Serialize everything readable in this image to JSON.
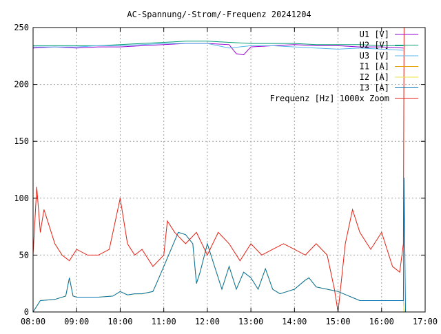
{
  "chart_data": {
    "type": "line",
    "title": "AC-Spannung/-Strom/-Frequenz 20241204",
    "xlabel": "",
    "ylabel": "",
    "x_ticks": [
      "08:00",
      "09:00",
      "10:00",
      "11:00",
      "12:00",
      "13:00",
      "14:00",
      "15:00",
      "16:00",
      "17:00"
    ],
    "xlim": [
      "08:00",
      "17:00"
    ],
    "ylim": [
      0,
      250
    ],
    "y_ticks": [
      0,
      50,
      100,
      150,
      200,
      250
    ],
    "grid": true,
    "legend_position": "top-right",
    "series": [
      {
        "name": "U1 [V]",
        "color": "#9400d3",
        "x": [
          "08:00",
          "08:30",
          "09:00",
          "09:30",
          "10:00",
          "10:30",
          "11:00",
          "11:30",
          "12:00",
          "12:30",
          "12:40",
          "12:50",
          "13:00",
          "13:30",
          "14:00",
          "14:30",
          "15:00",
          "15:30",
          "16:00",
          "16:30"
        ],
        "y": [
          232,
          233,
          232,
          233,
          233,
          234,
          235,
          236,
          236,
          235,
          227,
          226,
          233,
          234,
          235,
          234,
          234,
          233,
          233,
          232
        ]
      },
      {
        "name": "U2 [V]",
        "color": "#009e73",
        "x": [
          "08:00",
          "08:30",
          "09:00",
          "09:30",
          "10:00",
          "10:30",
          "11:00",
          "11:30",
          "12:00",
          "12:30",
          "13:00",
          "13:30",
          "14:00",
          "14:30",
          "15:00",
          "15:30",
          "16:00",
          "16:30"
        ],
        "y": [
          234,
          234,
          234,
          234,
          235,
          236,
          237,
          238,
          238,
          237,
          236,
          236,
          236,
          235,
          235,
          235,
          234,
          234
        ]
      },
      {
        "name": "U3 [V]",
        "color": "#56b4e9",
        "x": [
          "08:00",
          "08:30",
          "09:00",
          "09:30",
          "10:00",
          "10:30",
          "11:00",
          "11:30",
          "12:00",
          "12:30",
          "13:00",
          "13:30",
          "14:00",
          "14:30",
          "15:00",
          "15:30",
          "16:00",
          "16:30"
        ],
        "y": [
          233,
          233,
          233,
          234,
          234,
          235,
          236,
          236,
          236,
          232,
          234,
          234,
          233,
          232,
          231,
          232,
          231,
          230
        ]
      },
      {
        "name": "I1 [A]",
        "color": "#e69f00",
        "x": [
          "08:00",
          "08:10",
          "08:30",
          "08:45",
          "08:50",
          "08:55",
          "09:00",
          "09:30",
          "09:50",
          "10:00",
          "10:10",
          "10:20",
          "10:30",
          "10:45",
          "10:50",
          "11:00",
          "11:20",
          "11:30",
          "11:40",
          "11:45",
          "11:50",
          "12:00",
          "12:10",
          "12:20",
          "12:30",
          "12:40",
          "12:50",
          "13:00",
          "13:10",
          "13:20",
          "13:30",
          "13:40",
          "13:50",
          "14:00",
          "14:15",
          "14:20",
          "14:30",
          "14:45",
          "15:00",
          "15:30",
          "16:00",
          "16:30",
          "16:31"
        ],
        "y": [
          0,
          10,
          11,
          14,
          30,
          14,
          13,
          13,
          14,
          18,
          15,
          16,
          16,
          18,
          25,
          40,
          70,
          68,
          60,
          25,
          35,
          60,
          40,
          20,
          40,
          20,
          35,
          30,
          20,
          38,
          20,
          16,
          18,
          20,
          28,
          30,
          22,
          20,
          18,
          10,
          10,
          10,
          0
        ]
      },
      {
        "name": "I2 [A]",
        "color": "#f0e442",
        "x": [
          "08:00",
          "08:10",
          "08:30",
          "08:45",
          "08:50",
          "08:55",
          "09:00",
          "09:30",
          "09:50",
          "10:00",
          "10:10",
          "10:20",
          "10:30",
          "10:45",
          "10:50",
          "11:00",
          "11:20",
          "11:30",
          "11:40",
          "11:45",
          "11:50",
          "12:00",
          "12:10",
          "12:20",
          "12:30",
          "12:40",
          "12:50",
          "13:00",
          "13:10",
          "13:20",
          "13:30",
          "13:40",
          "13:50",
          "14:00",
          "14:15",
          "14:20",
          "14:30",
          "14:45",
          "15:00",
          "15:30",
          "16:00",
          "16:30",
          "16:31"
        ],
        "y": [
          0,
          10,
          11,
          14,
          30,
          14,
          13,
          13,
          14,
          18,
          15,
          16,
          16,
          18,
          25,
          40,
          70,
          68,
          60,
          25,
          35,
          60,
          40,
          20,
          40,
          20,
          35,
          30,
          20,
          38,
          20,
          16,
          18,
          20,
          28,
          30,
          22,
          20,
          18,
          10,
          10,
          10,
          0
        ]
      },
      {
        "name": "I3 [A]",
        "color": "#0072b2",
        "x": [
          "08:00",
          "08:10",
          "08:30",
          "08:45",
          "08:50",
          "08:55",
          "09:00",
          "09:30",
          "09:50",
          "10:00",
          "10:10",
          "10:20",
          "10:30",
          "10:45",
          "10:50",
          "11:00",
          "11:20",
          "11:30",
          "11:40",
          "11:45",
          "11:50",
          "12:00",
          "12:10",
          "12:20",
          "12:30",
          "12:40",
          "12:50",
          "13:00",
          "13:10",
          "13:20",
          "13:30",
          "13:40",
          "13:50",
          "14:00",
          "14:15",
          "14:20",
          "14:30",
          "14:45",
          "15:00",
          "15:30",
          "16:00",
          "16:30",
          "16:31",
          "16:33"
        ],
        "y": [
          0,
          10,
          11,
          14,
          30,
          14,
          13,
          13,
          14,
          18,
          15,
          16,
          16,
          18,
          25,
          40,
          70,
          68,
          60,
          25,
          35,
          60,
          40,
          20,
          40,
          20,
          35,
          30,
          20,
          38,
          20,
          16,
          18,
          20,
          28,
          30,
          22,
          20,
          18,
          10,
          10,
          10,
          118,
          0
        ]
      },
      {
        "name": "Frequenz [Hz] 1000x Zoom",
        "color": "#e51e10",
        "x": [
          "08:00",
          "08:05",
          "08:10",
          "08:15",
          "08:20",
          "08:30",
          "08:40",
          "08:50",
          "09:00",
          "09:15",
          "09:30",
          "09:45",
          "10:00",
          "10:10",
          "10:20",
          "10:30",
          "10:45",
          "11:00",
          "11:05",
          "11:15",
          "11:30",
          "11:45",
          "12:00",
          "12:15",
          "12:30",
          "12:45",
          "13:00",
          "13:15",
          "13:30",
          "13:45",
          "14:00",
          "14:15",
          "14:30",
          "14:45",
          "14:55",
          "15:00",
          "15:10",
          "15:20",
          "15:30",
          "15:45",
          "16:00",
          "16:15",
          "16:25",
          "16:30",
          "16:31"
        ],
        "y": [
          50,
          110,
          70,
          90,
          80,
          60,
          50,
          45,
          55,
          50,
          50,
          55,
          100,
          60,
          50,
          55,
          40,
          50,
          80,
          70,
          60,
          70,
          50,
          70,
          60,
          45,
          60,
          50,
          55,
          60,
          55,
          50,
          60,
          50,
          20,
          0,
          60,
          90,
          70,
          55,
          70,
          40,
          35,
          60,
          250
        ]
      }
    ]
  }
}
